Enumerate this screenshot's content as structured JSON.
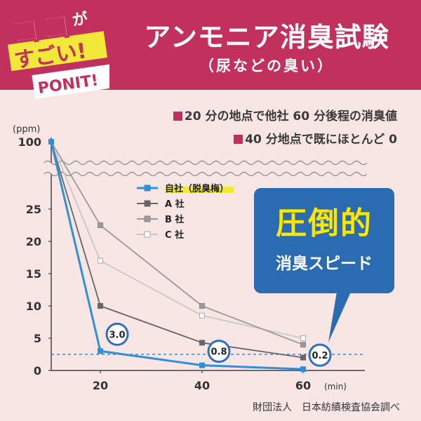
{
  "header": {
    "title": "アンモニア消臭試験",
    "subtitle": "（尿などの臭い）"
  },
  "badge": {
    "line1": "ココ",
    "line1_small": "が",
    "line2": "すごい!",
    "line3": "PONIT!"
  },
  "notes": [
    "20 分の地点で他社 60 分後程の消臭値",
    "40 分地点で既にほとんど 0"
  ],
  "callout": {
    "big": "圧倒的",
    "small": "消臭スピード"
  },
  "source": "財団法人　日本紡績検査協会調べ",
  "colors": {
    "header": "#c2305d",
    "background": "#f7e6e3",
    "ours": "#2f8fd8",
    "a": "#666666",
    "b": "#9a9a9a",
    "c": "#c8c8c8",
    "callout": "#2a6bb1"
  },
  "chart_data": {
    "type": "line",
    "ylabel": "(ppm)",
    "xunit": "(min)",
    "x": [
      0,
      20,
      40,
      60
    ],
    "x_ticks": [
      "20",
      "40",
      "60"
    ],
    "y_ticks": [
      "0",
      "5",
      "10",
      "15",
      "20",
      "25",
      "100"
    ],
    "ylim": [
      0,
      100
    ],
    "axis_break": "between 25 and 100",
    "grid": false,
    "legend_position": "upper-middle",
    "reference_line": 2.5,
    "series": [
      {
        "name": "自社（脱臭梅）",
        "values": [
          100,
          3.0,
          0.8,
          0.2
        ]
      },
      {
        "name": "A 社",
        "values": [
          100,
          10,
          4.3,
          2.0
        ]
      },
      {
        "name": "B 社",
        "values": [
          100,
          22.5,
          10,
          4.0
        ]
      },
      {
        "name": "C 社",
        "values": [
          100,
          17,
          8.5,
          5.0
        ]
      }
    ],
    "labels": [
      "3.0",
      "0.8",
      "0.2"
    ]
  }
}
